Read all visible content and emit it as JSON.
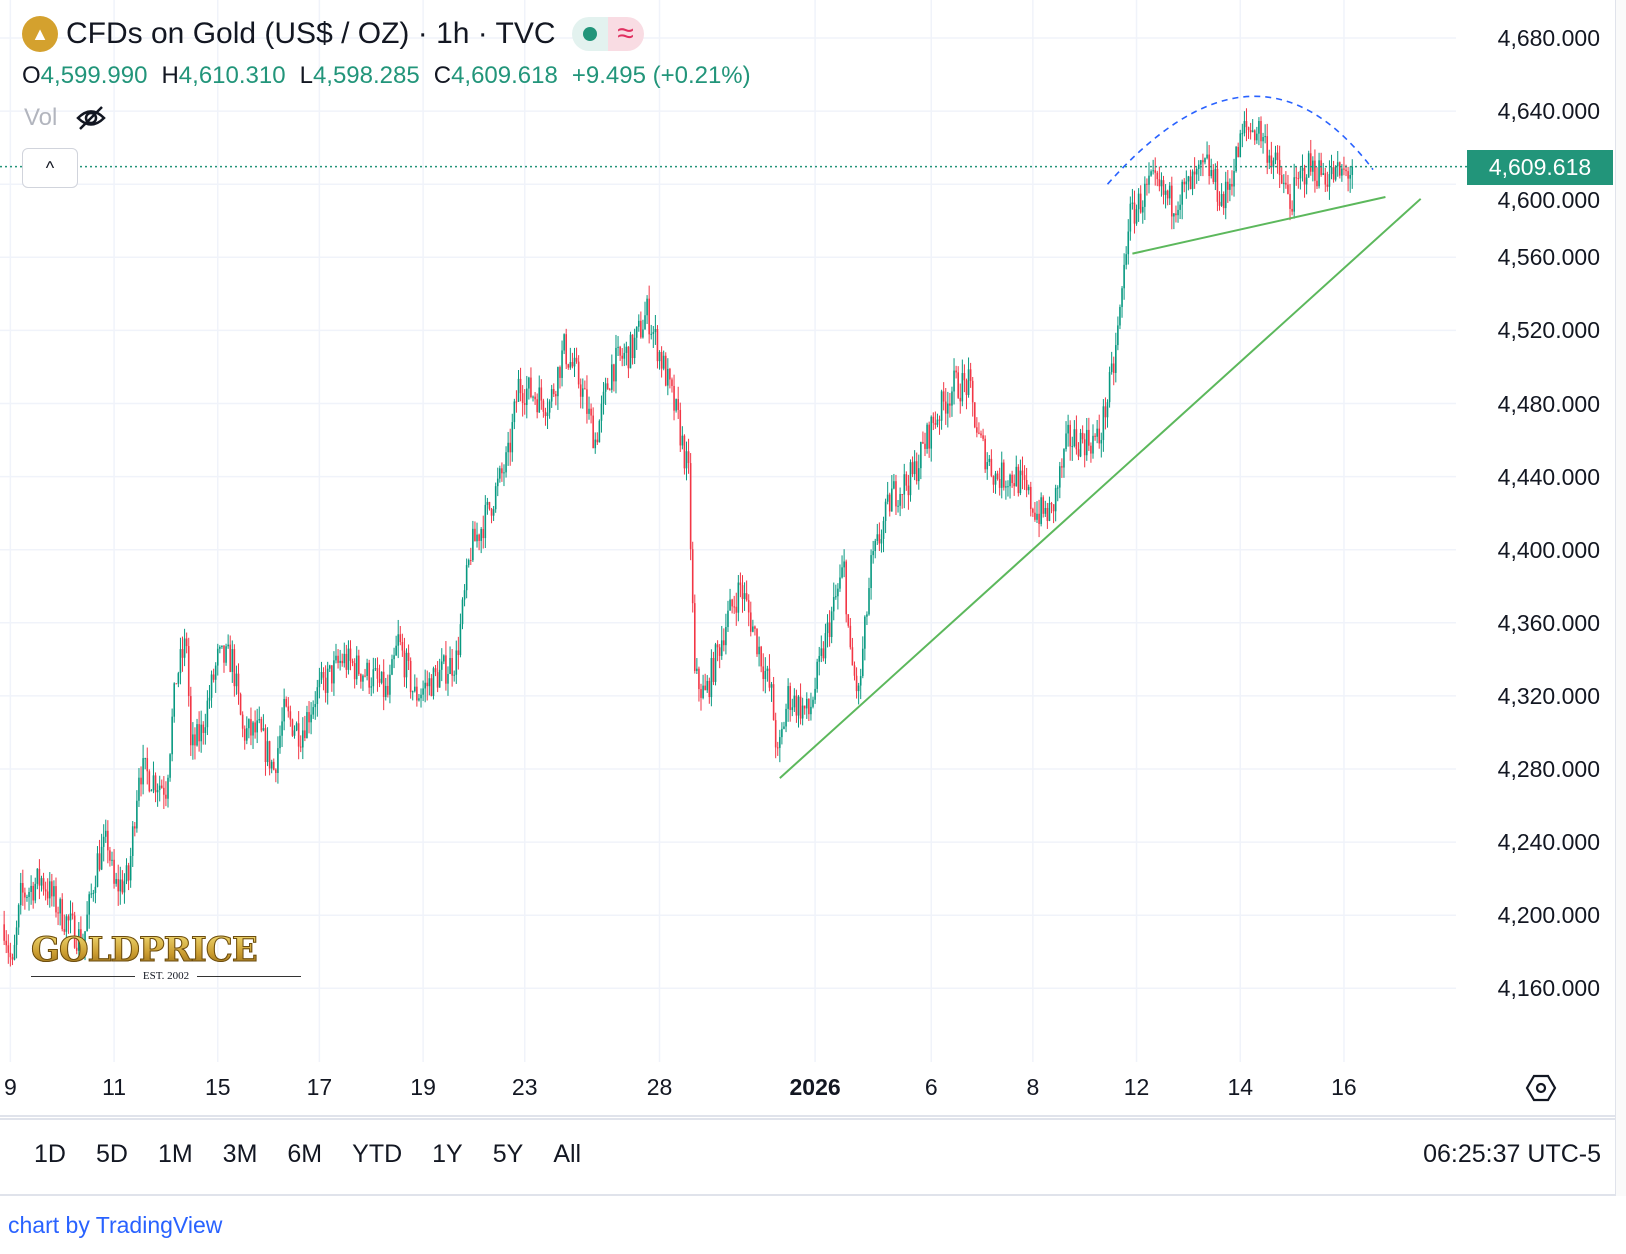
{
  "header": {
    "title": "CFDs on Gold (US$ / OZ) · 1h · TVC",
    "market_open_icon": "green-dot",
    "indicator_icon": "≈"
  },
  "ohlc": {
    "o_label": "O",
    "o": "4,599.990",
    "h_label": "H",
    "h": "4,610.310",
    "l_label": "L",
    "l": "4,598.285",
    "c_label": "C",
    "c": "4,609.618",
    "change": "+9.495 (+0.21%)"
  },
  "vol_label": "Vol",
  "collapse_icon": "^",
  "current_price": "4,609.618",
  "ranges": [
    "1D",
    "5D",
    "1M",
    "3M",
    "6M",
    "YTD",
    "1Y",
    "5Y",
    "All"
  ],
  "clock": "06:25:37 UTC-5",
  "credit": "chart by TradingView",
  "watermark": {
    "brand": "GOLDPRICE",
    "est": "EST. 2002"
  },
  "colors": {
    "up": "#089981",
    "down": "#f23645",
    "accent": "#22957a",
    "trend": "#5cb85c",
    "arc": "#2962ff"
  },
  "chart_data": {
    "type": "candlestick",
    "title": "CFDs on Gold (US$ / OZ) · 1h · TVC",
    "ylim": [
      4120,
      4700
    ],
    "y_ticks": [
      "4,680.000",
      "4,640.000",
      "4,600.000",
      "4,560.000",
      "4,520.000",
      "4,480.000",
      "4,440.000",
      "4,400.000",
      "4,360.000",
      "4,320.000",
      "4,280.000",
      "4,240.000",
      "4,200.000",
      "4,160.000"
    ],
    "y_tick_values": [
      4680,
      4640,
      4600,
      4560,
      4520,
      4480,
      4440,
      4400,
      4360,
      4320,
      4280,
      4240,
      4200,
      4160
    ],
    "x_ticks": [
      {
        "label": "9",
        "bar": 5
      },
      {
        "label": "11",
        "bar": 55
      },
      {
        "label": "15",
        "bar": 105
      },
      {
        "label": "17",
        "bar": 154
      },
      {
        "label": "19",
        "bar": 204
      },
      {
        "label": "23",
        "bar": 253
      },
      {
        "label": "28",
        "bar": 318
      },
      {
        "label": "2026",
        "bar": 393,
        "bold": true
      },
      {
        "label": "6",
        "bar": 449
      },
      {
        "label": "8",
        "bar": 498
      },
      {
        "label": "12",
        "bar": 548
      },
      {
        "label": "14",
        "bar": 598
      },
      {
        "label": "16",
        "bar": 648
      }
    ],
    "bars_visible": [
      0,
      680
    ],
    "approx_price_path": [
      [
        2,
        4195
      ],
      [
        6,
        4170
      ],
      [
        10,
        4210
      ],
      [
        20,
        4220
      ],
      [
        30,
        4200
      ],
      [
        40,
        4185
      ],
      [
        47,
        4230
      ],
      [
        52,
        4240
      ],
      [
        55,
        4215
      ],
      [
        62,
        4220
      ],
      [
        67,
        4280
      ],
      [
        80,
        4270
      ],
      [
        85,
        4330
      ],
      [
        90,
        4350
      ],
      [
        92,
        4290
      ],
      [
        97,
        4300
      ],
      [
        105,
        4340
      ],
      [
        112,
        4340
      ],
      [
        117,
        4300
      ],
      [
        125,
        4300
      ],
      [
        132,
        4280
      ],
      [
        137,
        4310
      ],
      [
        145,
        4300
      ],
      [
        152,
        4320
      ],
      [
        165,
        4340
      ],
      [
        180,
        4330
      ],
      [
        187,
        4320
      ],
      [
        192,
        4350
      ],
      [
        200,
        4320
      ],
      [
        210,
        4330
      ],
      [
        220,
        4340
      ],
      [
        227,
        4400
      ],
      [
        235,
        4420
      ],
      [
        245,
        4450
      ],
      [
        250,
        4490
      ],
      [
        265,
        4480
      ],
      [
        272,
        4510
      ],
      [
        280,
        4490
      ],
      [
        287,
        4460
      ],
      [
        295,
        4500
      ],
      [
        305,
        4510
      ],
      [
        312,
        4530
      ],
      [
        320,
        4500
      ],
      [
        327,
        4470
      ],
      [
        332,
        4440
      ],
      [
        335,
        4330
      ],
      [
        340,
        4320
      ],
      [
        350,
        4360
      ],
      [
        357,
        4380
      ],
      [
        365,
        4350
      ],
      [
        372,
        4320
      ],
      [
        375,
        4285
      ],
      [
        380,
        4320
      ],
      [
        390,
        4310
      ],
      [
        400,
        4360
      ],
      [
        407,
        4390
      ],
      [
        410,
        4340
      ],
      [
        414,
        4320
      ],
      [
        420,
        4390
      ],
      [
        430,
        4430
      ],
      [
        440,
        4440
      ],
      [
        450,
        4470
      ],
      [
        460,
        4490
      ],
      [
        467,
        4490
      ],
      [
        472,
        4460
      ],
      [
        480,
        4440
      ],
      [
        490,
        4440
      ],
      [
        500,
        4420
      ],
      [
        507,
        4420
      ],
      [
        515,
        4460
      ],
      [
        530,
        4460
      ],
      [
        537,
        4500
      ],
      [
        541,
        4540
      ],
      [
        544,
        4580
      ],
      [
        555,
        4600
      ],
      [
        565,
        4590
      ],
      [
        575,
        4600
      ],
      [
        582,
        4610
      ],
      [
        590,
        4590
      ],
      [
        600,
        4630
      ],
      [
        607,
        4630
      ],
      [
        615,
        4610
      ],
      [
        622,
        4590
      ],
      [
        630,
        4610
      ],
      [
        640,
        4605
      ],
      [
        647,
        4605
      ],
      [
        652,
        4608
      ]
    ],
    "drawings": [
      {
        "type": "trendline",
        "from": {
          "bar": 376,
          "price": 4275
        },
        "to": {
          "bar": 685,
          "price": 4592
        }
      },
      {
        "type": "trendline",
        "from": {
          "bar": 546,
          "price": 4562
        },
        "to": {
          "bar": 668,
          "price": 4593
        }
      },
      {
        "type": "arc",
        "from": {
          "bar": 534,
          "price": 4600
        },
        "peak": {
          "bar": 606,
          "price": 4648
        },
        "to": {
          "bar": 662,
          "price": 4608
        }
      }
    ],
    "last_price": 4609.618
  }
}
